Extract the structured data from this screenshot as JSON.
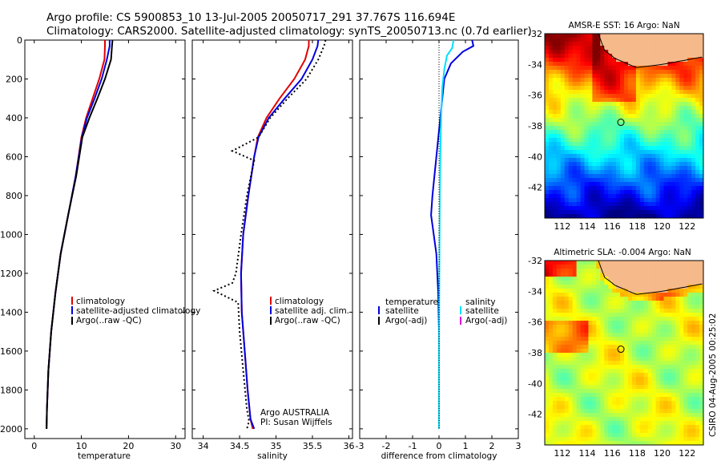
{
  "header": {
    "line1": "Argo profile: CS 5900853_10 13-Jul-2005 20050717_291 37.767S 116.694E",
    "line2": "Climatology: CARS2000. Satellite-adjusted climatology: synTS_20050713.nc (0.7d earlier)"
  },
  "colors": {
    "climatology": "#e00000",
    "satellite": "#0000e0",
    "argo": "#000000",
    "salinity_satellite": "#00e0ff",
    "argo_adj_salinity": "#e000e0",
    "land": "#f5b98a"
  },
  "chart_data": [
    {
      "type": "line",
      "id": "temperature",
      "xlabel": "temperature",
      "xlim": [
        -2,
        32
      ],
      "ylim": [
        2050,
        0
      ],
      "xticks": [
        0,
        10,
        20,
        30
      ],
      "yticks": [
        0,
        200,
        400,
        600,
        800,
        1000,
        1200,
        1400,
        1600,
        1800,
        2000
      ],
      "legend": [
        "climatology",
        "satellite-adjusted climatology",
        "Argo(..raw -QC)"
      ],
      "series": [
        {
          "name": "climatology",
          "color": "#e00000",
          "x": [
            15,
            15,
            14.9,
            13.8,
            12.4,
            11.0,
            10.0,
            8.8,
            7.2,
            5.6,
            4.5,
            3.6,
            3.0,
            2.7,
            2.6
          ],
          "y": [
            0,
            30,
            100,
            200,
            300,
            400,
            500,
            700,
            900,
            1100,
            1300,
            1500,
            1700,
            1900,
            2000
          ]
        },
        {
          "name": "satellite-adjusted climatology",
          "color": "#0000e0",
          "x": [
            16.0,
            16.0,
            15.4,
            14.3,
            12.8,
            11.2,
            10.1,
            8.8,
            7.2,
            5.6,
            4.5,
            3.6,
            3.0,
            2.7,
            2.6
          ],
          "y": [
            0,
            30,
            100,
            200,
            300,
            400,
            500,
            700,
            900,
            1100,
            1300,
            1500,
            1700,
            1900,
            2000
          ]
        },
        {
          "name": "Argo(..raw -QC)",
          "color": "#000000",
          "x": [
            16.6,
            16.5,
            16.3,
            15.0,
            13.4,
            11.7,
            10.2,
            8.9,
            7.2,
            5.6,
            4.5,
            3.6,
            3.0,
            2.7,
            2.6
          ],
          "y": [
            0,
            30,
            100,
            200,
            300,
            400,
            500,
            700,
            900,
            1100,
            1300,
            1500,
            1700,
            1900,
            2000
          ]
        }
      ]
    },
    {
      "type": "line",
      "id": "salinity",
      "xlabel": "salinity",
      "xlim": [
        33.85,
        36.05
      ],
      "ylim": [
        2050,
        0
      ],
      "xticks": [
        34,
        34.5,
        35,
        35.5,
        36
      ],
      "legend": [
        "climatology",
        "satellite adj. clim.",
        "Argo(..raw -QC)"
      ],
      "annotation": [
        "Argo AUSTRALIA",
        "PI: Susan Wijffels"
      ],
      "series": [
        {
          "name": "climatology",
          "color": "#e00000",
          "x": [
            35.45,
            35.45,
            35.4,
            35.25,
            35.05,
            34.87,
            34.75,
            34.7,
            34.62,
            34.55,
            34.52,
            34.53,
            34.57,
            34.61,
            34.65,
            34.68
          ],
          "y": [
            0,
            30,
            100,
            200,
            300,
            400,
            500,
            600,
            800,
            1000,
            1200,
            1400,
            1600,
            1800,
            1950,
            2000
          ]
        },
        {
          "name": "satellite adj. clim.",
          "color": "#0000e0",
          "x": [
            35.58,
            35.57,
            35.5,
            35.35,
            35.12,
            34.9,
            34.76,
            34.7,
            34.62,
            34.55,
            34.52,
            34.53,
            34.57,
            34.61,
            34.65,
            34.7
          ],
          "y": [
            0,
            30,
            100,
            200,
            300,
            400,
            500,
            600,
            800,
            1000,
            1200,
            1400,
            1600,
            1800,
            1950,
            2000
          ]
        },
        {
          "name": "Argo(..raw -QC)",
          "color": "#000000",
          "dash": true,
          "x": [
            35.68,
            35.66,
            35.58,
            35.42,
            35.16,
            34.92,
            34.76,
            34.4,
            34.7,
            34.6,
            34.52,
            34.45,
            34.4,
            34.15,
            34.48,
            34.5,
            34.55,
            34.6,
            34.63,
            34.6
          ],
          "y": [
            0,
            30,
            100,
            200,
            300,
            400,
            500,
            570,
            620,
            800,
            1000,
            1200,
            1250,
            1290,
            1350,
            1500,
            1700,
            1900,
            1960,
            2000
          ]
        }
      ]
    },
    {
      "type": "line",
      "id": "difference",
      "xlabel": "difference from climatology",
      "xlim": [
        -3,
        3
      ],
      "ylim": [
        2050,
        0
      ],
      "xticks": [
        -3,
        -2,
        -1,
        0,
        1,
        2,
        3
      ],
      "legend_temperature": [
        "temperature",
        "satellite",
        "Argo(-adj)"
      ],
      "legend_salinity": [
        "salinity",
        "satellite",
        "Argo(-adj)"
      ],
      "series": [
        {
          "name": "temperature satellite",
          "color": "#0000e0",
          "x": [
            1.25,
            1.3,
            0.9,
            0.45,
            0.2,
            0.05,
            -0.1,
            -0.25,
            -0.3,
            -0.1,
            -0.03,
            0,
            0,
            0
          ],
          "y": [
            0,
            30,
            60,
            120,
            200,
            400,
            600,
            800,
            900,
            1100,
            1300,
            1500,
            1800,
            2000
          ]
        },
        {
          "name": "salinity satellite",
          "color": "#00e0ff",
          "x": [
            0.55,
            0.5,
            0.3,
            0.2,
            0.12,
            0.08,
            0.05,
            0.03,
            0.02,
            0.01,
            0,
            0,
            0
          ],
          "y": [
            0,
            40,
            80,
            150,
            250,
            400,
            600,
            800,
            1000,
            1300,
            1600,
            1900,
            2000
          ]
        },
        {
          "name": "zero",
          "color": "#000000",
          "dotted": true,
          "x": [
            0,
            0
          ],
          "y": [
            0,
            2000
          ]
        }
      ]
    },
    {
      "type": "heatmap",
      "id": "sst",
      "title": "AMSR-E SST: 16 Argo: NaN",
      "xlim": [
        110.6,
        123.3
      ],
      "ylim": [
        -44,
        -32
      ],
      "xticks": [
        112,
        114,
        116,
        118,
        120,
        122
      ],
      "yticks": [
        -32,
        -34,
        -36,
        -38,
        -40,
        -42
      ],
      "float_position": {
        "lon": 116.694,
        "lat": -37.767
      }
    },
    {
      "type": "heatmap",
      "id": "sla",
      "title": "Altimetric SLA: -0.004 Argo: NaN",
      "xlim": [
        110.6,
        123.3
      ],
      "ylim": [
        -44,
        -32
      ],
      "xticks": [
        112,
        114,
        116,
        118,
        120,
        122
      ],
      "yticks": [
        -32,
        -34,
        -36,
        -38,
        -40,
        -42
      ],
      "float_position": {
        "lon": 116.694,
        "lat": -37.767
      }
    }
  ],
  "footer": {
    "stamp": "CSIRO 04-Aug-2005 00:25:02"
  }
}
